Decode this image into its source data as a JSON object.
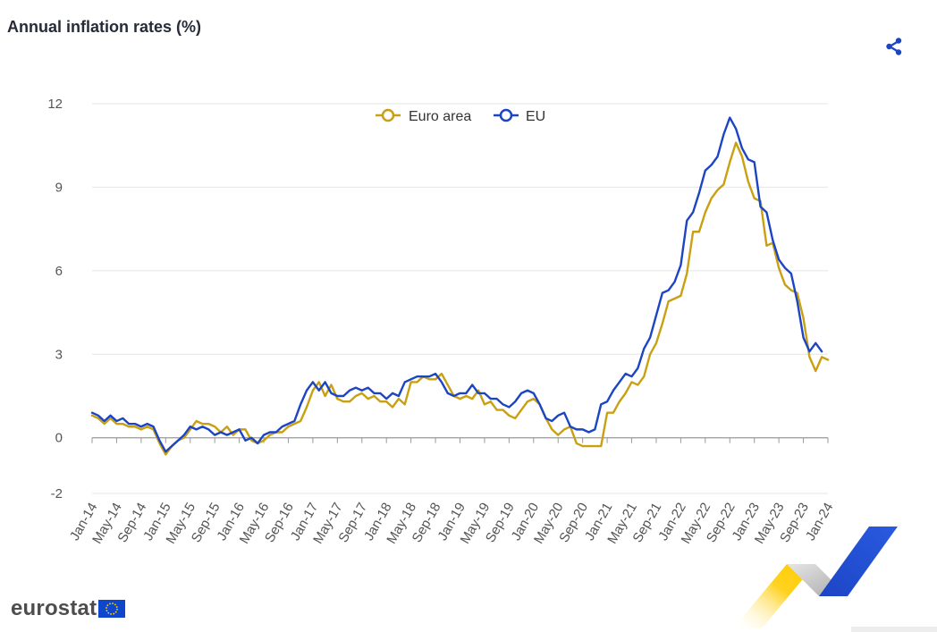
{
  "header": {
    "title": "Annual inflation rates (%)"
  },
  "toolbar": {
    "share_icon": "share-icon"
  },
  "brand": {
    "logo_text": "eurostat",
    "flag_icon": "eu-flag-icon"
  },
  "colors": {
    "euro_area": "#c9a012",
    "eu": "#1c45c4",
    "grid": "#e4e4e4",
    "axis": "#9a9a9a"
  },
  "chart_data": {
    "type": "line",
    "title": "Annual inflation rates (%)",
    "xlabel": "",
    "ylabel": "",
    "ylim": [
      -2,
      12
    ],
    "yticks": [
      -2,
      0,
      3,
      6,
      9,
      12
    ],
    "grid": true,
    "legend_position": "top-center",
    "x_start": "Jan-14",
    "x_end": "Jan-24",
    "x_tick_labels": [
      "Jan-14",
      "May-14",
      "Sep-14",
      "Jan-15",
      "May-15",
      "Sep-15",
      "Jan-16",
      "May-16",
      "Sep-16",
      "Jan-17",
      "May-17",
      "Sep-17",
      "Jan-18",
      "May-18",
      "Sep-18",
      "Jan-19",
      "May-19",
      "Sep-19",
      "Jan-20",
      "May-20",
      "Sep-20",
      "Jan-21",
      "May-21",
      "Sep-21",
      "Jan-22",
      "May-22",
      "Sep-22",
      "Jan-23",
      "May-23",
      "Sep-23",
      "Jan-24"
    ],
    "series": [
      {
        "name": "Euro area",
        "color": "#c9a012",
        "values": [
          0.8,
          0.7,
          0.5,
          0.7,
          0.5,
          0.5,
          0.4,
          0.4,
          0.3,
          0.4,
          0.3,
          -0.2,
          -0.6,
          -0.3,
          -0.1,
          0.0,
          0.3,
          0.6,
          0.5,
          0.5,
          0.4,
          0.2,
          0.4,
          0.1,
          0.3,
          0.3,
          -0.1,
          -0.2,
          -0.1,
          0.1,
          0.2,
          0.2,
          0.4,
          0.5,
          0.6,
          1.1,
          1.7,
          2.0,
          1.5,
          1.9,
          1.4,
          1.3,
          1.3,
          1.5,
          1.6,
          1.4,
          1.5,
          1.3,
          1.3,
          1.1,
          1.4,
          1.2,
          2.0,
          2.0,
          2.2,
          2.1,
          2.1,
          2.3,
          1.9,
          1.5,
          1.4,
          1.5,
          1.4,
          1.7,
          1.2,
          1.3,
          1.0,
          1.0,
          0.8,
          0.7,
          1.0,
          1.3,
          1.4,
          1.2,
          0.7,
          0.3,
          0.1,
          0.3,
          0.4,
          -0.2,
          -0.3,
          -0.3,
          -0.3,
          -0.3,
          0.9,
          0.9,
          1.3,
          1.6,
          2.0,
          1.9,
          2.2,
          3.0,
          3.4,
          4.1,
          4.9,
          5.0,
          5.1,
          5.9,
          7.4,
          7.4,
          8.1,
          8.6,
          8.9,
          9.1,
          9.9,
          10.6,
          10.1,
          9.2,
          8.6,
          8.5,
          6.9,
          7.0,
          6.1,
          5.5,
          5.3,
          5.2,
          4.3,
          2.9,
          2.4,
          2.9,
          2.8
        ]
      },
      {
        "name": "EU",
        "color": "#1c45c4",
        "values": [
          0.9,
          0.8,
          0.6,
          0.8,
          0.6,
          0.7,
          0.5,
          0.5,
          0.4,
          0.5,
          0.4,
          -0.1,
          -0.5,
          -0.3,
          -0.1,
          0.1,
          0.4,
          0.3,
          0.4,
          0.3,
          0.1,
          0.2,
          0.1,
          0.2,
          0.3,
          -0.1,
          0.0,
          -0.2,
          0.1,
          0.2,
          0.2,
          0.4,
          0.5,
          0.6,
          1.2,
          1.7,
          2.0,
          1.7,
          2.0,
          1.6,
          1.5,
          1.5,
          1.7,
          1.8,
          1.7,
          1.8,
          1.6,
          1.6,
          1.4,
          1.6,
          1.5,
          2.0,
          2.1,
          2.2,
          2.2,
          2.2,
          2.3,
          2.0,
          1.6,
          1.5,
          1.6,
          1.6,
          1.9,
          1.6,
          1.6,
          1.4,
          1.4,
          1.2,
          1.1,
          1.3,
          1.6,
          1.7,
          1.6,
          1.2,
          0.7,
          0.6,
          0.8,
          0.9,
          0.4,
          0.3,
          0.3,
          0.2,
          0.3,
          1.2,
          1.3,
          1.7,
          2.0,
          2.3,
          2.2,
          2.5,
          3.2,
          3.6,
          4.4,
          5.2,
          5.3,
          5.6,
          6.2,
          7.8,
          8.1,
          8.8,
          9.6,
          9.8,
          10.1,
          10.9,
          11.5,
          11.1,
          10.4,
          10.0,
          9.9,
          8.3,
          8.1,
          7.1,
          6.4,
          6.1,
          5.9,
          4.9,
          3.6,
          3.1,
          3.4,
          3.1,
          null
        ]
      }
    ]
  }
}
